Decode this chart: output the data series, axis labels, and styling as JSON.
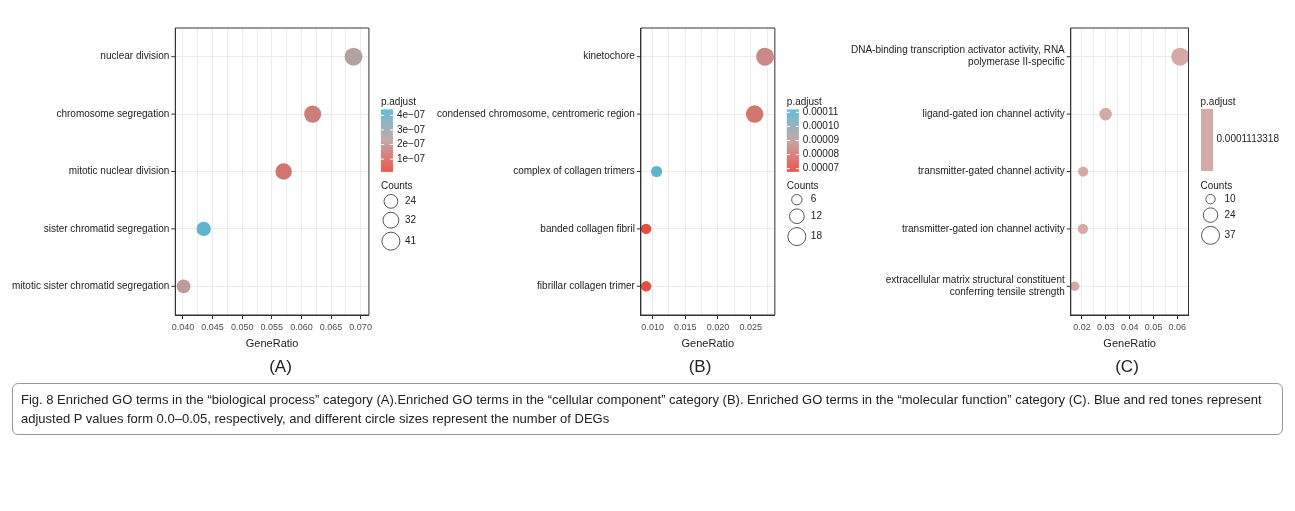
{
  "chart_data": [
    {
      "type": "bubble",
      "orientation": "horizontal",
      "categories": [
        "nuclear division",
        "chromosome segregation",
        "mitotic nuclear division",
        "sister chromatid segregation",
        "mitotic sister chromatid segregation"
      ],
      "values": [
        0.0688,
        0.0619,
        0.057,
        0.0435,
        0.0401
      ],
      "sizes": [
        41,
        37,
        34,
        26,
        24
      ],
      "cvalues": [
        2.5e-07,
        1.5e-07,
        1.3e-07,
        4.2e-07,
        2.2e-07
      ],
      "xlim": [
        0.0387,
        0.0714
      ],
      "xticks": [
        {
          "value": 0.04,
          "label": "0.040"
        },
        0.045,
        {
          "value": 0.05,
          "label": "0.050"
        },
        0.055,
        {
          "value": 0.06,
          "label": "0.060"
        },
        0.065,
        {
          "value": 0.07,
          "label": "0.070"
        },
        {
          "value": 0.0425,
          "label": null
        },
        {
          "value": 0.0475,
          "label": null
        },
        {
          "value": 0.0525,
          "label": null
        },
        {
          "value": 0.0575,
          "label": null
        },
        {
          "value": 0.0625,
          "label": null
        },
        {
          "value": 0.0675,
          "label": null
        }
      ],
      "xlabel": "GeneRatio",
      "clabel": "p.adjust",
      "clim": [
        1.5e-08,
        4.4e-07
      ],
      "cticks": [
        {
          "value": 4e-07,
          "label": "4e−07"
        },
        {
          "value": 3e-07,
          "label": "3e−07"
        },
        {
          "value": 2e-07,
          "label": "2e−07"
        },
        {
          "value": 1e-07,
          "label": "1e−07"
        }
      ],
      "legend_title": "Counts",
      "size_legend": [
        24,
        32,
        41
      ],
      "grid": true,
      "annotations": [
        "(A)",
        "Fig. 8  Enriched GO terms in the “biological process” category (A).Enriched GO terms in the “cellular component” category (B). Enriched GO terms in the “molecular function” category (C). Blue and red tones represent adjusted P values form 0.0–0.05, respectively, and different circle sizes represent the number of DEGs"
      ]
    },
    {
      "type": "bubble",
      "orientation": "horizontal",
      "categories": [
        "kinetochore",
        "condensed chromosome, centromeric region",
        "complex of collagen trimers",
        "banded collagen fibril",
        "fibrillar collagen trimer"
      ],
      "values": [
        0.0272,
        0.0256,
        0.0106,
        0.009,
        0.009
      ],
      "sizes": [
        18,
        17,
        7,
        6,
        6
      ],
      "cvalues": [
        8.5e-05,
        8e-05,
        0.00011,
        7e-05,
        7e-05
      ],
      "xlim": [
        0.0082,
        0.0287
      ],
      "xticks": [
        {
          "value": 0.01,
          "label": "0.010"
        },
        0.015,
        {
          "value": 0.02,
          "label": "0.020"
        },
        0.025,
        {
          "value": 0.0125,
          "label": null
        },
        {
          "value": 0.0175,
          "label": null
        },
        {
          "value": 0.0225,
          "label": null
        },
        {
          "value": 0.0275,
          "label": null
        }
      ],
      "xlabel": "GeneRatio",
      "clabel": "p.adjust",
      "clim": [
        6.8e-05,
        0.000112
      ],
      "cticks": [
        {
          "value": 0.00011,
          "label": "0.00011"
        },
        {
          "value": 0.0001,
          "label": "0.00010"
        },
        {
          "value": 9e-05,
          "label": "0.00009"
        },
        {
          "value": 8e-05,
          "label": "0.00008"
        },
        {
          "value": 7e-05,
          "label": "0.00007"
        }
      ],
      "legend_title": "Counts",
      "size_legend": [
        6,
        12,
        18
      ],
      "grid": true,
      "annotations": [
        "(B)"
      ]
    },
    {
      "type": "bubble",
      "orientation": "horizontal",
      "categories": [
        "DNA-binding transcription activator activity, RNA polymerase II-specific",
        "ligand-gated ion channel activity",
        "transmitter-gated channel activity",
        "transmitter-gated ion channel activity",
        "extracellular matrix structural constituent conferring tensile strength"
      ],
      "values": [
        0.0612,
        0.0299,
        0.0205,
        0.0204,
        0.017
      ],
      "sizes": [
        37,
        18,
        12,
        12,
        10
      ],
      "colors": [
        "#d4aaa6",
        "#d4aaa6",
        "#d4aaa6",
        "#d4aaa6",
        "#d4aaa6"
      ],
      "xlim": [
        0.0153,
        0.0647
      ],
      "xticks": [
        0.02,
        0.03,
        0.04,
        0.05,
        0.06,
        {
          "value": 0.025,
          "label": null
        },
        {
          "value": 0.035,
          "label": null
        },
        {
          "value": 0.045,
          "label": null
        },
        {
          "value": 0.055,
          "label": null
        }
      ],
      "xlabel": "GeneRatio",
      "clabel": "p.adjust",
      "legend_title": "Counts",
      "size_legend": [
        10,
        24,
        37
      ],
      "grid": true,
      "annotations": [
        "(C)",
        "0.0001113318"
      ]
    }
  ]
}
